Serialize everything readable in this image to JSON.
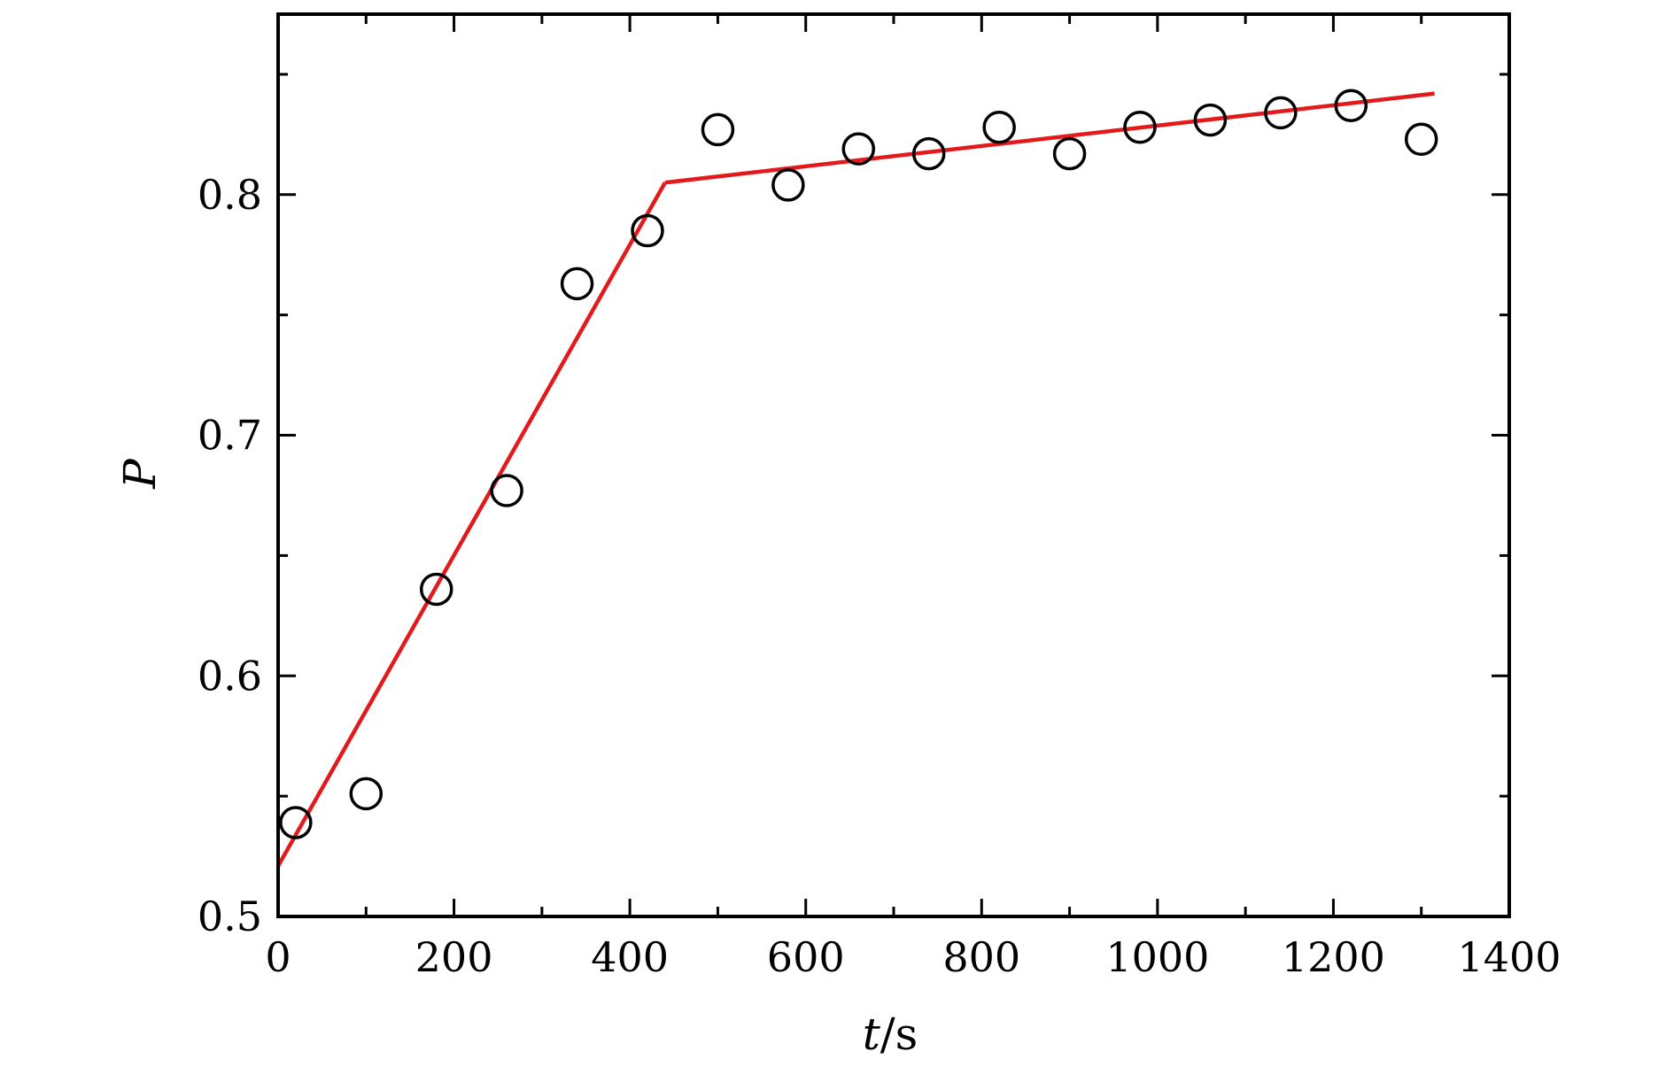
{
  "chart_data": {
    "type": "scatter",
    "title": "",
    "xlabel_var": "t",
    "xlabel_sep": "/",
    "xlabel_unit": "s",
    "ylabel": "P",
    "xlim": [
      0,
      1400
    ],
    "ylim": [
      0.5,
      0.875
    ],
    "x_ticks": [
      0,
      200,
      400,
      600,
      800,
      1000,
      1200,
      1400
    ],
    "x_tick_labels": [
      "0",
      "200",
      "400",
      "600",
      "800",
      "1000",
      "1200",
      "1400"
    ],
    "x_minor_ticks": [
      100,
      300,
      500,
      700,
      900,
      1100,
      1300
    ],
    "y_ticks": [
      0.5,
      0.6,
      0.7,
      0.8
    ],
    "y_tick_labels": [
      "0.5",
      "0.6",
      "0.7",
      "0.8"
    ],
    "y_minor_ticks": [
      0.55,
      0.65,
      0.75,
      0.85
    ],
    "grid": false,
    "legend": "none",
    "series": [
      {
        "kind": "points",
        "marker": "open-circle",
        "color": "#000000",
        "x": [
          20,
          100,
          180,
          260,
          340,
          420,
          500,
          580,
          660,
          740,
          820,
          900,
          980,
          1060,
          1140,
          1220,
          1300
        ],
        "y": [
          0.539,
          0.551,
          0.636,
          0.677,
          0.763,
          0.785,
          0.827,
          0.804,
          0.819,
          0.817,
          0.828,
          0.817,
          0.828,
          0.831,
          0.834,
          0.837,
          0.823
        ]
      },
      {
        "kind": "fit-line",
        "color": "#e31a1c",
        "segments": [
          {
            "x": [
              0,
              440
            ],
            "y": [
              0.521,
              0.805
            ]
          },
          {
            "x": [
              440,
              1315
            ],
            "y": [
              0.805,
              0.842
            ]
          }
        ]
      }
    ]
  }
}
